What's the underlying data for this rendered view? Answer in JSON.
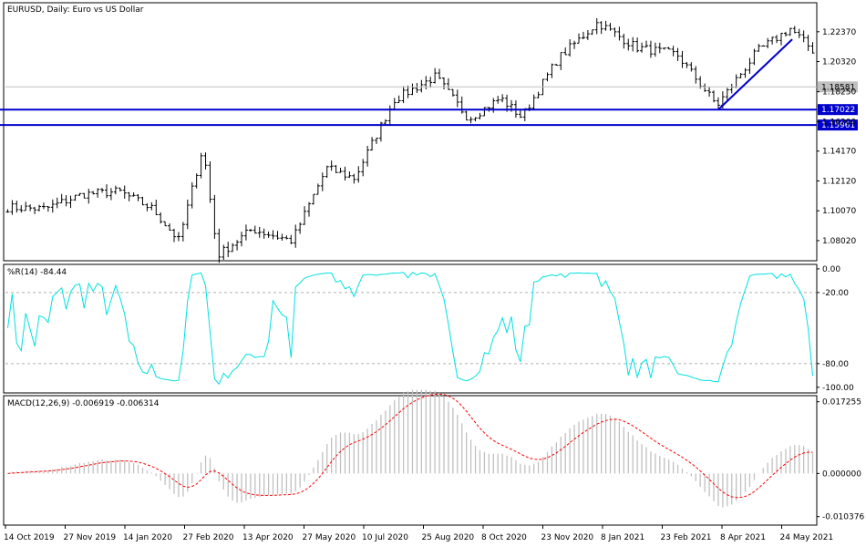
{
  "chart_data": [
    {
      "type": "candlestick",
      "title": "EURUSD, Daily:  Euro vs US Dollar",
      "price_ticks": [
        "1.22370",
        "1.20320",
        "1.18250",
        "1.16200",
        "1.14170",
        "1.12120",
        "1.10070",
        "1.08020"
      ],
      "price_tick_values": [
        1.2237,
        1.2032,
        1.1825,
        1.162,
        1.1417,
        1.1212,
        1.1007,
        1.0802
      ],
      "ylim": [
        1.067,
        1.243
      ],
      "current_price": {
        "label": "1.18581",
        "value": 1.18581,
        "color": "#c0c0c0"
      },
      "horizontal_lines": [
        {
          "label": "1.17022",
          "value": 1.17022,
          "color": "#0000cc"
        },
        {
          "label": "1.15961",
          "value": 1.15961,
          "color": "#0000cc"
        }
      ],
      "trendline": {
        "start": [
          "2021-03-31",
          1.1705
        ],
        "end": [
          "2021-05-25",
          1.2185
        ],
        "color": "#0000cc"
      },
      "close_series": {
        "x": [
          "2019-10-14",
          "2019-11-11",
          "2019-12-09",
          "2020-01-06",
          "2020-01-31",
          "2020-02-20",
          "2020-03-09",
          "2020-03-20",
          "2020-04-15",
          "2020-05-15",
          "2020-06-10",
          "2020-07-01",
          "2020-07-31",
          "2020-08-31",
          "2020-09-25",
          "2020-10-19",
          "2020-11-04",
          "2020-12-01",
          "2020-12-31",
          "2021-01-29",
          "2021-03-01",
          "2021-03-31",
          "2021-04-30",
          "2021-05-25",
          "2021-06-11"
        ],
        "values": [
          1.103,
          1.102,
          1.112,
          1.114,
          1.102,
          1.08,
          1.145,
          1.07,
          1.088,
          1.08,
          1.13,
          1.123,
          1.177,
          1.193,
          1.164,
          1.178,
          1.165,
          1.205,
          1.23,
          1.213,
          1.208,
          1.173,
          1.21,
          1.226,
          1.211
        ]
      },
      "bar_count": 180
    },
    {
      "type": "line",
      "title": "%R(14) -84.44",
      "ticks": [
        "0.00",
        "-20.00",
        "-80.00",
        "-100.00"
      ],
      "tick_values": [
        0,
        -20,
        -80,
        -100
      ],
      "levels": [
        -20,
        -80
      ],
      "ylim": [
        -104,
        3
      ],
      "color": "#00e0e0"
    },
    {
      "type": "bar",
      "title": "MACD(12,26,9) -0.006919 -0.006314",
      "ticks": [
        "0.017255",
        "0.000000",
        "-0.010376"
      ],
      "tick_values": [
        0.017255,
        0,
        -0.010376
      ],
      "ylim": [
        -0.0122,
        0.0185
      ],
      "histogram_color": "#c0c0c0",
      "signal_color": "#ff0000"
    }
  ],
  "date_axis": [
    "14 Oct 2019",
    "27 Nov 2019",
    "14 Jan 2020",
    "27 Feb 2020",
    "13 Apr 2020",
    "27 May 2020",
    "10 Jul 2020",
    "25 Aug 2020",
    "8 Oct 2020",
    "23 Nov 2020",
    "8 Jan 2021",
    "23 Feb 2021",
    "8 Apr 2021",
    "24 May 2021"
  ]
}
